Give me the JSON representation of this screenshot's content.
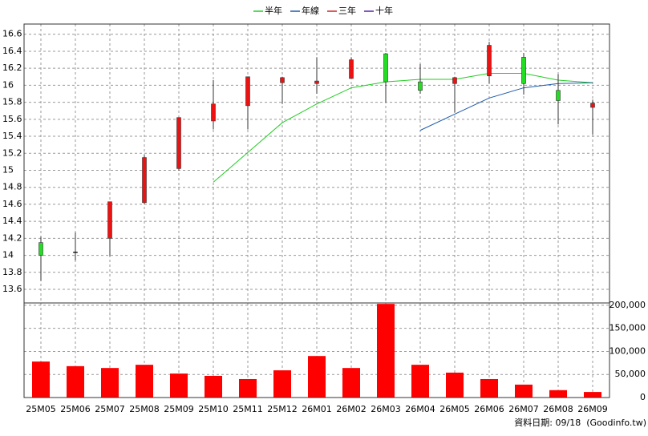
{
  "chart_data": [
    {
      "type": "candlestick",
      "open": [
        14.15,
        14.04,
        14.2,
        14.62,
        15.02,
        15.58,
        15.76,
        16.03,
        16.02,
        16.08,
        16.37,
        16.04,
        16.02,
        16.11,
        16.33,
        15.94,
        15.74
      ],
      "high": [
        14.22,
        14.27,
        14.63,
        15.18,
        15.62,
        16.06,
        16.1,
        16.1,
        16.33,
        16.33,
        16.38,
        16.25,
        16.1,
        16.51,
        16.38,
        16.13,
        15.83
      ],
      "low": [
        13.7,
        13.94,
        13.99,
        14.6,
        15.0,
        15.48,
        15.48,
        15.78,
        15.9,
        16.08,
        15.8,
        15.9,
        15.68,
        16.02,
        15.89,
        15.54,
        15.42
      ],
      "close": [
        14.0,
        14.04,
        14.63,
        15.15,
        15.62,
        15.78,
        16.1,
        16.09,
        16.05,
        16.3,
        16.04,
        15.94,
        16.09,
        16.47,
        16.02,
        15.82,
        15.79
      ],
      "series": [
        {
          "name": "半年",
          "color": "#22cc22",
          "values": [
            null,
            null,
            null,
            null,
            null,
            14.86,
            15.21,
            15.56,
            15.78,
            15.97,
            16.04,
            16.07,
            16.07,
            16.14,
            16.14,
            16.06,
            16.03
          ]
        },
        {
          "name": "年線",
          "color": "#1e5aa8",
          "values": [
            null,
            null,
            null,
            null,
            null,
            null,
            null,
            null,
            null,
            null,
            null,
            15.47,
            15.66,
            15.85,
            15.97,
            16.02,
            16.03
          ]
        },
        {
          "name": "三年",
          "color": "#cc2222",
          "values": [
            null,
            null,
            null,
            null,
            null,
            null,
            null,
            null,
            null,
            null,
            null,
            null,
            null,
            null,
            null,
            null,
            null
          ]
        },
        {
          "name": "十年",
          "color": "#5522aa",
          "values": [
            null,
            null,
            null,
            null,
            null,
            null,
            null,
            null,
            null,
            null,
            null,
            null,
            null,
            null,
            null,
            null,
            null
          ]
        }
      ],
      "up_color": "#ee1111",
      "down_color": "#22dd22",
      "ylim": [
        13.44,
        16.72
      ],
      "yticks": [
        13.6,
        13.8,
        14,
        14.2,
        14.4,
        14.6,
        14.8,
        15,
        15.2,
        15.4,
        15.6,
        15.8,
        16,
        16.2,
        16.4,
        16.6
      ],
      "grid": true
    },
    {
      "type": "bar",
      "categories": [
        "25M05",
        "25M06",
        "25M07",
        "25M08",
        "25M09",
        "25M10",
        "25M11",
        "25M12",
        "26M01",
        "26M02",
        "26M03",
        "26M04",
        "26M05",
        "26M06",
        "26M07",
        "26M08",
        "26M09"
      ],
      "values": [
        78000,
        68000,
        64000,
        71000,
        52000,
        47000,
        40000,
        59000,
        90000,
        64000,
        203000,
        71000,
        54000,
        40000,
        28000,
        16000,
        12000
      ],
      "color": "#ff0000",
      "ylim": [
        0,
        205000
      ],
      "yticks": [
        0,
        {
          "value": 50000,
          "label": "50,000"
        },
        {
          "value": 100000,
          "label": "100,000"
        },
        {
          "value": 150000,
          "label": "150,000"
        },
        {
          "value": 200000,
          "label": "200,000"
        }
      ],
      "grid": true
    }
  ],
  "footer": "資料日期: 09/18  (Goodinfo.tw)"
}
